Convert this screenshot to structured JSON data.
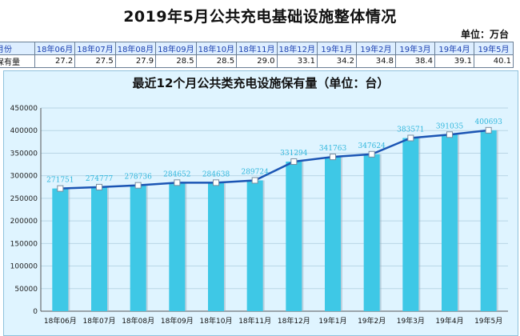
{
  "page": {
    "title": "2019年5月公共充电基础设施整体情况",
    "unit": "单位：万台"
  },
  "table": {
    "header_label": "月份",
    "value_label": "保有量",
    "months": [
      "18年06月",
      "18年07月",
      "18年08月",
      "18年09月",
      "18年10月",
      "18年11月",
      "18年12月",
      "19年1月",
      "19年2月",
      "19年3月",
      "19年4月",
      "19年5月"
    ],
    "values": [
      "27.2",
      "27.5",
      "27.9",
      "28.5",
      "28.5",
      "29.0",
      "33.1",
      "34.2",
      "34.8",
      "38.4",
      "39.1",
      "40.1"
    ]
  },
  "chart_data": {
    "type": "bar",
    "title": "最近12个月公共类充电设施保有量（单位：台）",
    "categories": [
      "18年06月",
      "18年07月",
      "18年08月",
      "18年09月",
      "18年10月",
      "18年11月",
      "18年12月",
      "19年1月",
      "19年2月",
      "19年3月",
      "19年4月",
      "19年5月"
    ],
    "series": [
      {
        "values": [
          271751,
          274777,
          278736,
          284652,
          284638,
          289724,
          331294,
          341763,
          347624,
          383571,
          391035,
          400693
        ]
      }
    ],
    "overlay_line": true,
    "ylim": [
      0,
      450000
    ],
    "yticks": [
      0,
      50000,
      100000,
      150000,
      200000,
      250000,
      300000,
      350000,
      400000,
      450000
    ],
    "grid": true,
    "colors": {
      "bar": "#3ec8e6",
      "line": "#1b55b4",
      "label": "#2fb6dc",
      "panel": "#dff4ff"
    }
  }
}
